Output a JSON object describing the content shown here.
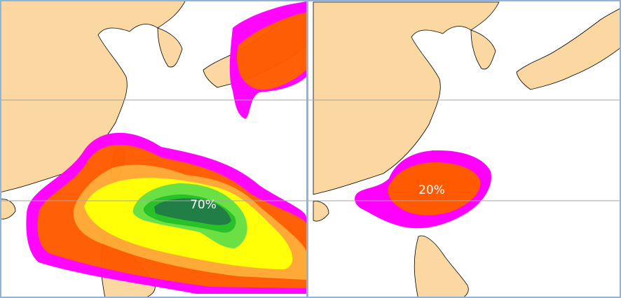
{
  "panels": [
    {
      "label": "70%"
    },
    {
      "label": "20%"
    }
  ]
}
